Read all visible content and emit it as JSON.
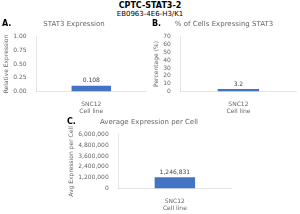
{
  "title": "CPTC-STAT3-2",
  "subtitle": "EB0963-4E6-H3/K1",
  "chart_data": [
    {
      "type": "bar",
      "title": "STAT3 Expression",
      "ylabel": "Relative Expression",
      "annotation": "A.",
      "categories": [
        "SNC12\nCell line"
      ],
      "values": [
        0.108
      ],
      "data_labels": true,
      "color": "#4472C4",
      "ylim": [
        0,
        1.0
      ],
      "yticks": [
        {
          "value": 0.0,
          "label": "0.00"
        },
        {
          "value": 0.25,
          "label": "0.25"
        },
        {
          "value": 0.5,
          "label": "0.50"
        },
        {
          "value": 0.75,
          "label": "0.75"
        },
        {
          "value": 1.0,
          "label": "1.00"
        }
      ],
      "grid": false
    },
    {
      "type": "bar",
      "title": "% of Cells Expressing STAT3",
      "ylabel": "Percentage (%)",
      "annotation": "B.",
      "categories": [
        "SNC12\nCell line"
      ],
      "values": [
        3.2
      ],
      "data_labels": true,
      "color": "#4472C4",
      "ylim": [
        0,
        70
      ],
      "yticks": [
        0,
        10,
        20,
        30,
        40,
        50,
        60,
        70
      ],
      "grid": false
    },
    {
      "type": "bar",
      "title": "Average Expression per Cell",
      "ylabel": "Avg Expression per Cell",
      "annotation": "C.",
      "categories": [
        "SNC12\nCell line"
      ],
      "values": [
        1246831
      ],
      "value_labels": [
        "1,246,831"
      ],
      "data_labels": true,
      "color": "#4472C4",
      "ylim": [
        0,
        6000000
      ],
      "yticks": [
        0,
        {
          "value": 1200000,
          "label": "1,200,000"
        },
        {
          "value": 2400000,
          "label": "2,400,000"
        },
        {
          "value": 3600000,
          "label": "3,600,000"
        },
        {
          "value": 4800000,
          "label": "4,800,000"
        },
        {
          "value": 6000000,
          "label": "6,000,000"
        }
      ],
      "grid": false
    }
  ]
}
